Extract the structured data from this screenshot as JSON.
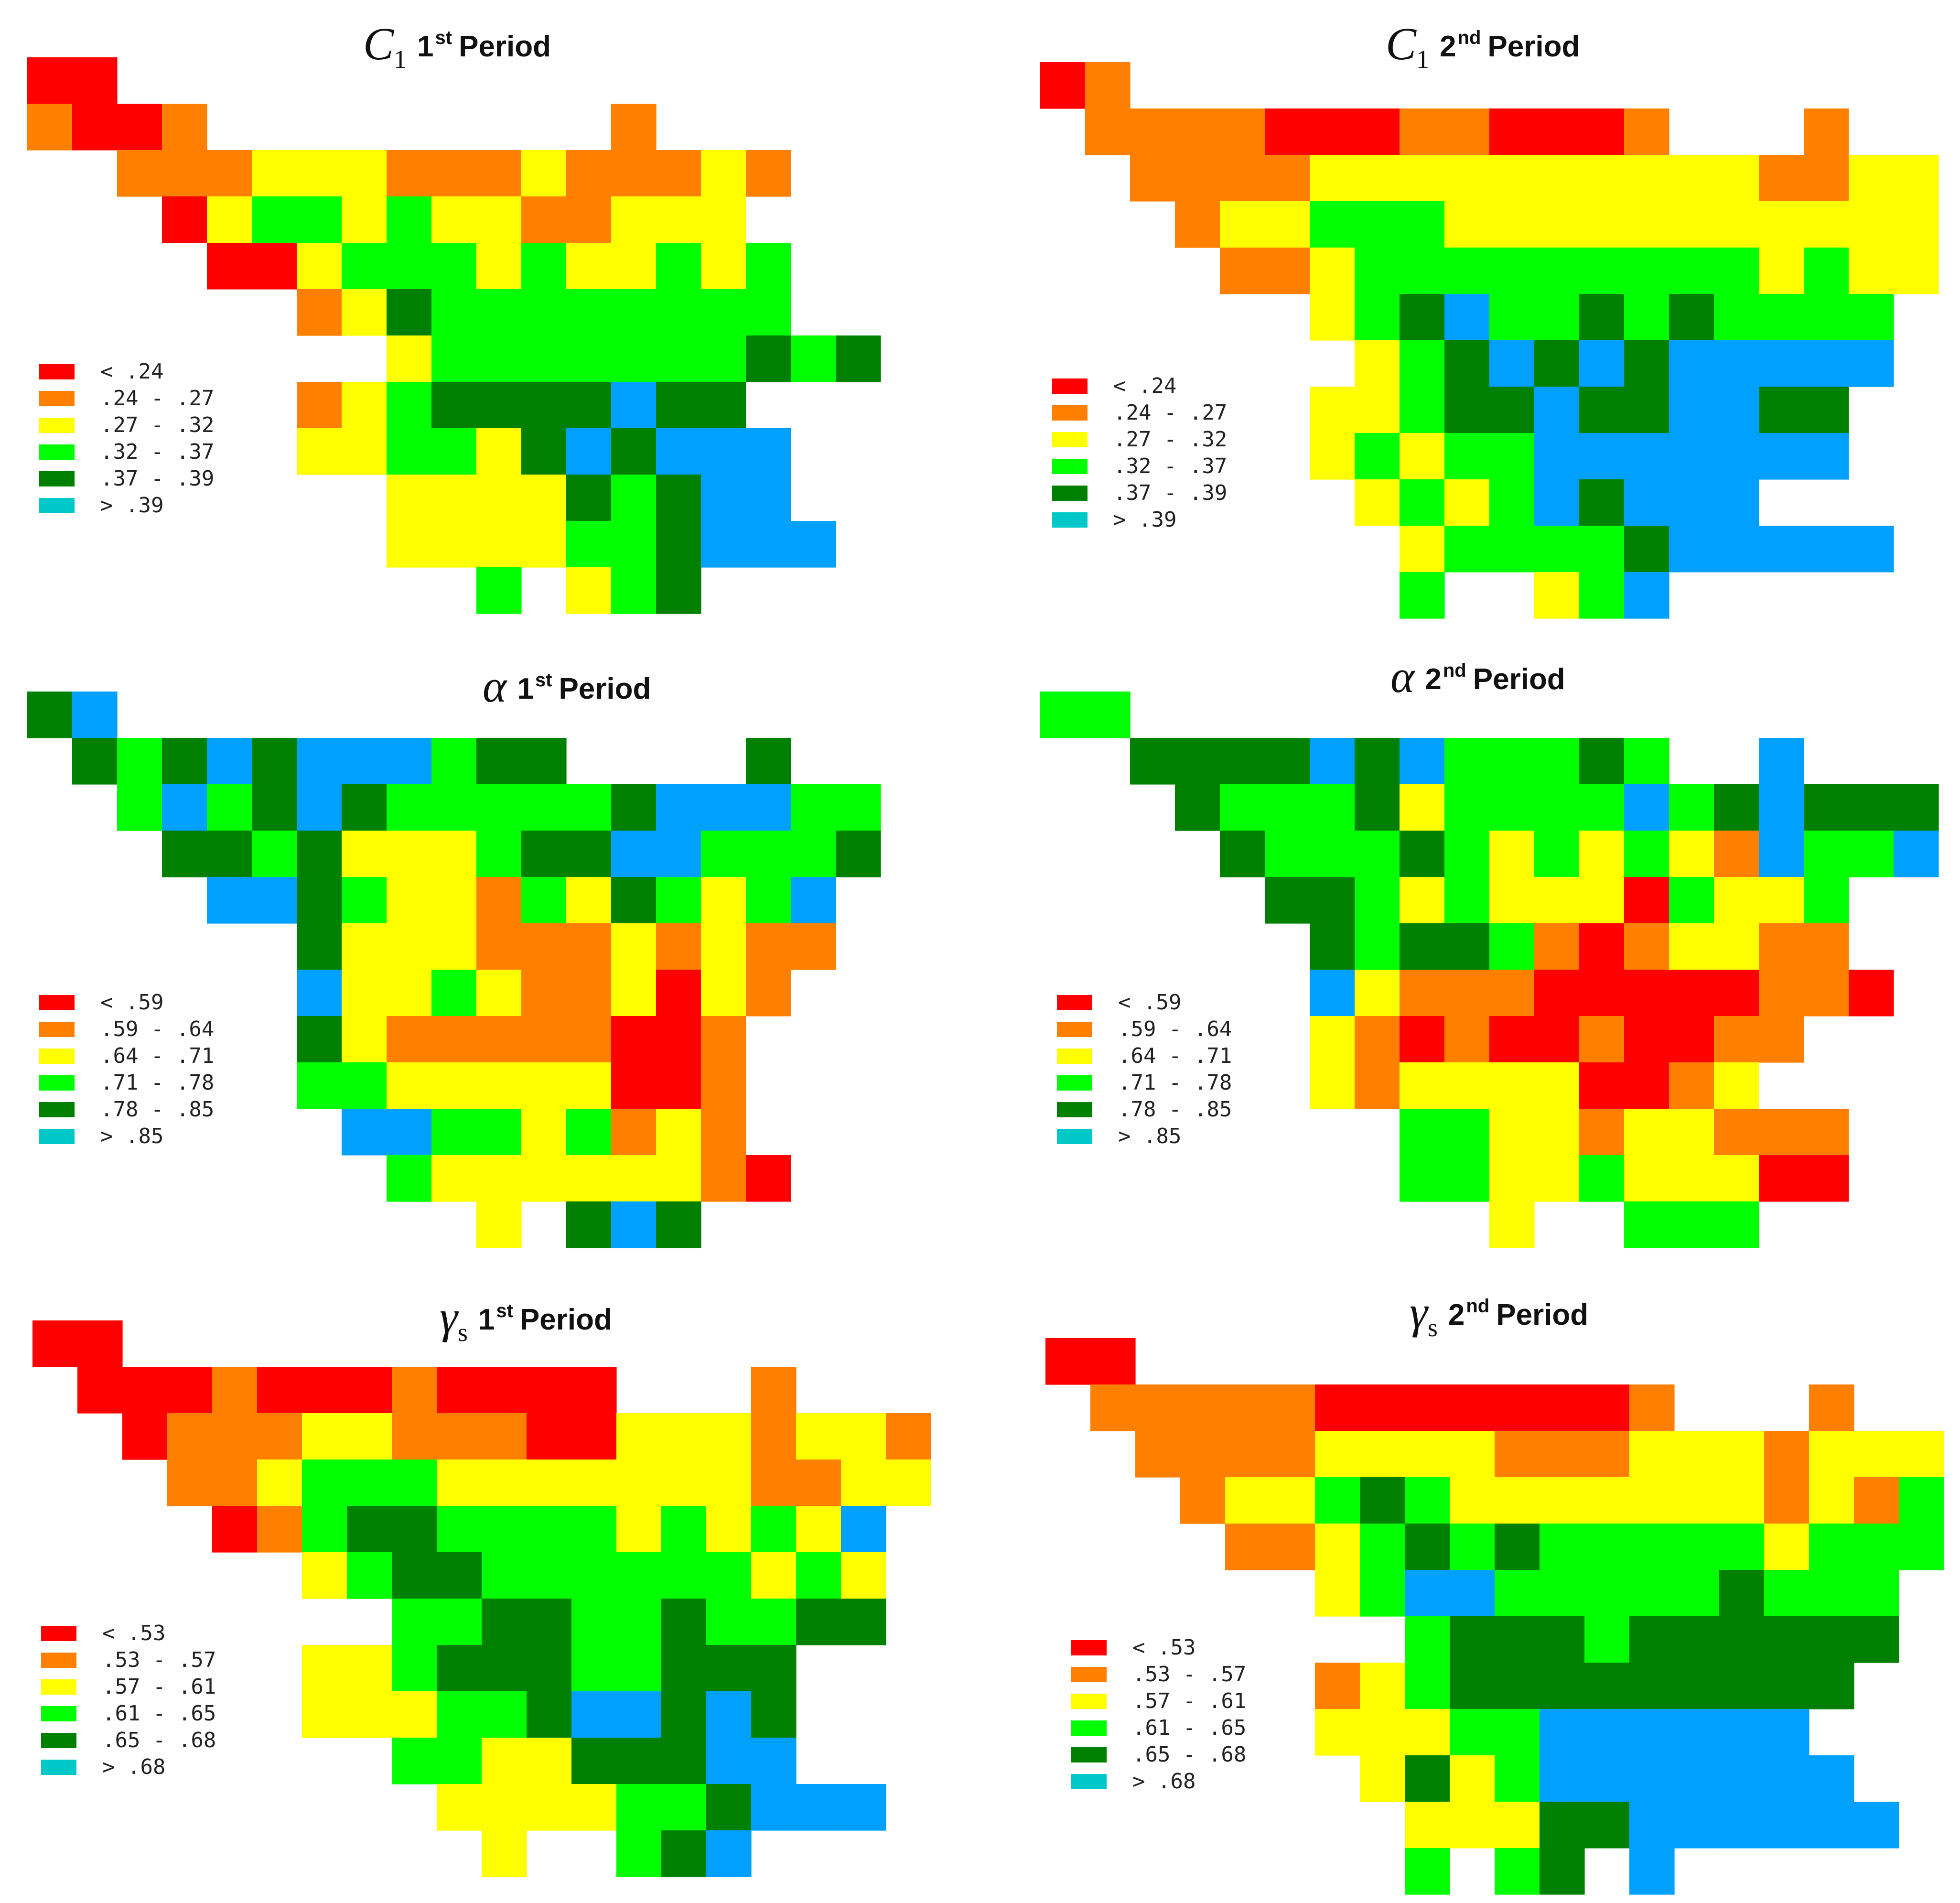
{
  "colors": {
    "red": "#ff0000",
    "orange": "#ff8000",
    "yellow": "#ffff00",
    "green": "#00ff00",
    "darkgreen": "#008000",
    "blue": "#00a0ff",
    "cyan": "#00c8c8"
  },
  "panels": [
    {
      "id": "c1p1",
      "symbol": "C",
      "sub": "1",
      "num": "1",
      "ord": "st",
      "word": "Period",
      "legend": [
        "< .24",
        ".24 - .27",
        ".27 - .32",
        ".32 - .37",
        ".37 - .39",
        "> .39"
      ],
      "grid": [
        "RR..................",
        "ORRO.........O......",
        "..OOOYYYOOOYOOOYO...",
        "...RYGGYGYYOOYYY....",
        "....RRYGGGYGYYGYG...",
        "......OYDGGGGGGGG...",
        "........YGGGGGGGDGD.",
        "......OYGDDDDBDD....",
        "......YYGGYDBDBBB...",
        "........YYYYDGDBB...",
        "........YYYYGGDBBB..",
        "..........G.YGD....."
      ]
    },
    {
      "id": "c1p2",
      "symbol": "C",
      "sub": "1",
      "num": "2",
      "ord": "nd",
      "word": "Period",
      "legend": [
        "< .24",
        ".24 - .27",
        ".27 - .32",
        ".32 - .37",
        ".37 - .39",
        "> .39"
      ],
      "grid": [
        "RO..................",
        ".OOOORRROORRRO...O..",
        "..OOOOYYYYYYYYYYOOYY",
        "...OYYGGGYYYYYYYYYYY",
        "....OOYGGGGGGGGGYGYY",
        "......YGDBGGDGDGGGG.",
        ".......YGDBDBDBBBBB.",
        "......YYGDDBDDBBDD..",
        "......YGYGGBBBBBBB..",
        ".......YGYGBDBBB....",
        "........YGGGGDBBBBB.",
        "........G..YGB......"
      ]
    },
    {
      "id": "ap1",
      "symbol": "α",
      "sub": "",
      "num": "1",
      "ord": "st",
      "word": "Period",
      "legend": [
        "< .59",
        ".59 - .64",
        ".64 - .71",
        ".71 - .78",
        ".78 - .85",
        "> .85"
      ],
      "grid": [
        "DB..................",
        ".DGDBDBBBGDD....D...",
        "..GBGDBDGGGGGDBBBGG.",
        "...DDGDYYYGDDBBGGGD.",
        "....BBDGYYOGYDGYGB..",
        "......DYYYOOOYOYOO..",
        "......BYYGYOOYRYO...",
        "......DYOOOOORRO....",
        "......GGYYYYYRRO....",
        ".......BBGGYGOYO....",
        "........GYYYYYYOR...",
        "..........Y.DBD....."
      ]
    },
    {
      "id": "ap2",
      "symbol": "α",
      "sub": "",
      "num": "2",
      "ord": "nd",
      "word": "Period",
      "legend": [
        "< .59",
        ".59 - .64",
        ".64 - .71",
        ".71 - .78",
        ".78 - .85",
        "> .85"
      ],
      "grid": [
        "GG..................",
        "..DDDDBDBGGGDG..B...",
        "...DGGGDYGGGGBGDBDDD",
        "....DGGGDGYGYGYOBGGB",
        ".....DDGYGYYYRGYYG..",
        "......DGDDGOROYYOO..",
        "......BYOOORRRRROOR.",
        "......YORORRORROO...",
        "......YOYYYYRROY....",
        "........GGYYOYYOOO..",
        "........GGYYGYYYRR..",
        "..........Y..GGG...."
      ]
    },
    {
      "id": "gp1",
      "symbol": "γ",
      "sub": "s",
      "num": "1",
      "ord": "st",
      "word": "Period",
      "legend": [
        "< .53",
        ".53 - .57",
        ".57 - .61",
        ".61 - .65",
        ".65 - .68",
        "> .68"
      ],
      "grid": [
        "RR..................",
        ".RRRORRRORRRR...O...",
        "..ROOOYYOOORRYYYOYYO",
        "...OOYGGGYYYYYYYOOYY",
        "....ROGDDGGGGYGYGYB.",
        "......YGDDGGGGGGYGY.",
        "........GGDDGGDGGDD.",
        "......YYGDDDGGDDD...",
        "......YYYGGDBBDBD...",
        "........GGYYDDDBB...",
        ".........YYYYGGDBBB.",
        "..........Y..GDB...."
      ]
    },
    {
      "id": "gp2",
      "symbol": "γ",
      "sub": "s",
      "num": "2",
      "ord": "nd",
      "word": "Period",
      "legend": [
        "< .53",
        ".53 - .57",
        ".57 - .61",
        ".61 - .65",
        ".65 - .68",
        "> .68"
      ],
      "grid": [
        "RR..................",
        ".OOOOORRRRRRRO...O..",
        "..OOOOYYYYOOOYYYOYYY",
        "...OYYGDGYYYYYYYOYOG",
        "....OOYGDGDGGGGGYGGG",
        "......YGBBGGGGGDGGG.",
        "........GDDDGDDDDDD.",
        "......OYGDDDDDDDDD..",
        "......YYYGGBBBBBB...",
        ".......YDYGBBBBBBB..",
        "........YYYDDBBBBBB.",
        "........G.GD.B......"
      ]
    }
  ]
}
